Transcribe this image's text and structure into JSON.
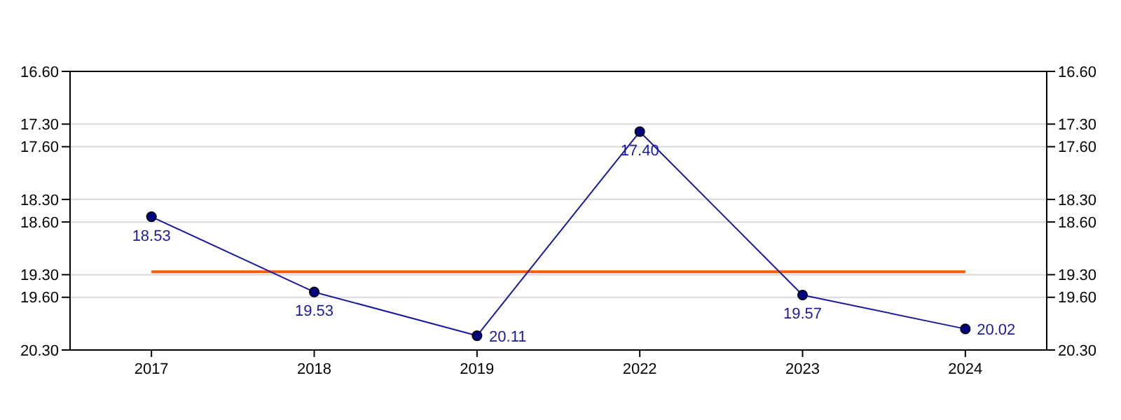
{
  "chart_data": {
    "type": "line",
    "categories": [
      "2017",
      "2018",
      "2019",
      "2022",
      "2023",
      "2024"
    ],
    "series": [
      {
        "color": "#1a1aa0",
        "values": [
          18.53,
          19.53,
          20.11,
          17.4,
          19.57,
          20.02
        ],
        "value_labels": [
          "18.53",
          "19.53",
          "20.11",
          "17.40",
          "19.57",
          "20.02"
        ]
      }
    ],
    "marker": "circle",
    "ylim": [
      20.3,
      16.6
    ],
    "yticks": [
      {
        "value": 16.6,
        "label": "16.60"
      },
      {
        "value": 17.3,
        "label": "17.30"
      },
      {
        "value": 17.6,
        "label": "17.60"
      },
      {
        "value": 18.3,
        "label": "18.30"
      },
      {
        "value": 18.6,
        "label": "18.60"
      },
      {
        "value": 19.3,
        "label": "19.30"
      },
      {
        "value": 19.6,
        "label": "19.60"
      },
      {
        "value": 20.3,
        "label": "20.30"
      }
    ],
    "y2lim": [
      20.3,
      16.6
    ],
    "y2ticks": [
      {
        "value": 16.6,
        "label": "16.60"
      },
      {
        "value": 17.3,
        "label": "17.30"
      },
      {
        "value": 17.6,
        "label": "17.60"
      },
      {
        "value": 18.3,
        "label": "18.30"
      },
      {
        "value": 18.6,
        "label": "18.60"
      },
      {
        "value": 19.3,
        "label": "19.30"
      },
      {
        "value": 19.6,
        "label": "19.60"
      },
      {
        "value": 20.3,
        "label": "20.30"
      }
    ],
    "grid": "y",
    "ref_lines": [
      {
        "axis": "y",
        "value": 19.26,
        "color": "#ff5a00"
      }
    ]
  }
}
